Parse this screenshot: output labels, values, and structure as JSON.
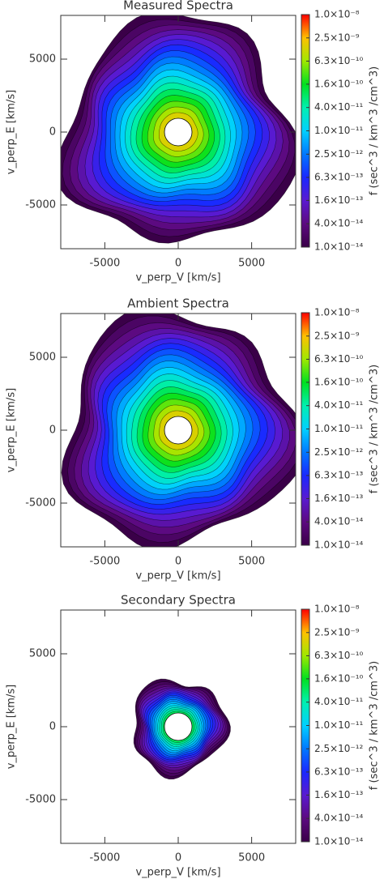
{
  "chart_data": [
    {
      "type": "contour",
      "title": "Measured Spectra",
      "xlabel": "v_perp_V [km/s]",
      "ylabel": "v_perp_E [km/s]",
      "xlim": [
        -8000,
        8000
      ],
      "ylim": [
        -8000,
        8000
      ],
      "xticks": [
        -5000,
        0,
        5000
      ],
      "yticks": [
        -5000,
        0,
        5000
      ],
      "colorbar": {
        "label": "f (sec^3 / km^3 /cm^3)",
        "log": true,
        "ylim": [
          1e-14,
          1e-08
        ],
        "colormap": [
          "#3a0048",
          "#5c0a80",
          "#5a1ad0",
          "#1a28ff",
          "#0078ff",
          "#00d0ff",
          "#00f0b0",
          "#00e020",
          "#a0e800",
          "#ffc000",
          "#ff0000"
        ],
        "yticks": [
          {
            "value": 1e-08,
            "label": "1.0×10⁻⁸"
          },
          {
            "value": 2.5e-09,
            "label": "2.5×10⁻⁹"
          },
          {
            "value": 6.3e-10,
            "label": "6.3×10⁻¹⁰"
          },
          {
            "value": 1.6e-10,
            "label": "1.6×10⁻¹⁰"
          },
          {
            "value": 4e-11,
            "label": "4.0×10⁻¹¹"
          },
          {
            "value": 1e-11,
            "label": "1.0×10⁻¹¹"
          },
          {
            "value": 2.5e-12,
            "label": "2.5×10⁻¹²"
          },
          {
            "value": 6.3e-13,
            "label": "6.3×10⁻¹³"
          },
          {
            "value": 1.6e-13,
            "label": "1.6×10⁻¹³"
          },
          {
            "value": 4e-14,
            "label": "4.0×10⁻¹⁴"
          },
          {
            "value": 1e-14,
            "label": "1.0×10⁻¹⁴"
          }
        ]
      }
    },
    {
      "type": "contour",
      "title": "Ambient Spectra",
      "xlabel": "v_perp_V [km/s]",
      "ylabel": "v_perp_E [km/s]",
      "xlim": [
        -8000,
        8000
      ],
      "ylim": [
        -8000,
        8000
      ],
      "xticks": [
        -5000,
        0,
        5000
      ],
      "yticks": [
        -5000,
        0,
        5000
      ],
      "colorbar": {
        "label": "f (sec^3 / km^3 /cm^3)",
        "log": true,
        "ylim": [
          1e-14,
          1e-08
        ],
        "colormap": [
          "#3a0048",
          "#5c0a80",
          "#5a1ad0",
          "#1a28ff",
          "#0078ff",
          "#00d0ff",
          "#00f0b0",
          "#00e020",
          "#a0e800",
          "#ffc000",
          "#ff0000"
        ],
        "yticks": [
          {
            "value": 1e-08,
            "label": "1.0×10⁻⁸"
          },
          {
            "value": 2.5e-09,
            "label": "2.5×10⁻⁹"
          },
          {
            "value": 6.3e-10,
            "label": "6.3×10⁻¹⁰"
          },
          {
            "value": 1.6e-10,
            "label": "1.6×10⁻¹⁰"
          },
          {
            "value": 4e-11,
            "label": "4.0×10⁻¹¹"
          },
          {
            "value": 1e-11,
            "label": "1.0×10⁻¹¹"
          },
          {
            "value": 2.5e-12,
            "label": "2.5×10⁻¹²"
          },
          {
            "value": 6.3e-13,
            "label": "6.3×10⁻¹³"
          },
          {
            "value": 1.6e-13,
            "label": "1.6×10⁻¹³"
          },
          {
            "value": 4e-14,
            "label": "4.0×10⁻¹⁴"
          },
          {
            "value": 1e-14,
            "label": "1.0×10⁻¹⁴"
          }
        ]
      }
    },
    {
      "type": "contour",
      "title": "Secondary Spectra",
      "xlabel": "v_perp_V [km/s]",
      "ylabel": "v_perp_E [km/s]",
      "xlim": [
        -8000,
        8000
      ],
      "ylim": [
        -8000,
        8000
      ],
      "xticks": [
        -5000,
        0,
        5000
      ],
      "yticks": [
        -5000,
        0,
        5000
      ],
      "colorbar": {
        "label": "f (sec^3 / km^3 /cm^3)",
        "log": true,
        "ylim": [
          1e-14,
          1e-08
        ],
        "colormap": [
          "#3a0048",
          "#5c0a80",
          "#5a1ad0",
          "#1a28ff",
          "#0078ff",
          "#00d0ff",
          "#00f0b0",
          "#00e020",
          "#a0e800",
          "#ffc000",
          "#ff0000"
        ],
        "yticks": [
          {
            "value": 1e-08,
            "label": "1.0×10⁻⁸"
          },
          {
            "value": 2.5e-09,
            "label": "2.5×10⁻⁹"
          },
          {
            "value": 6.3e-10,
            "label": "6.3×10⁻¹⁰"
          },
          {
            "value": 1.6e-10,
            "label": "1.6×10⁻¹⁰"
          },
          {
            "value": 4e-11,
            "label": "4.0×10⁻¹¹"
          },
          {
            "value": 1e-11,
            "label": "1.0×10⁻¹¹"
          },
          {
            "value": 2.5e-12,
            "label": "2.5×10⁻¹²"
          },
          {
            "value": 6.3e-13,
            "label": "6.3×10⁻¹³"
          },
          {
            "value": 1.6e-13,
            "label": "1.6×10⁻¹³"
          },
          {
            "value": 4e-14,
            "label": "4.0×10⁻¹⁴"
          },
          {
            "value": 1e-14,
            "label": "1.0×10⁻¹⁴"
          }
        ]
      }
    }
  ]
}
